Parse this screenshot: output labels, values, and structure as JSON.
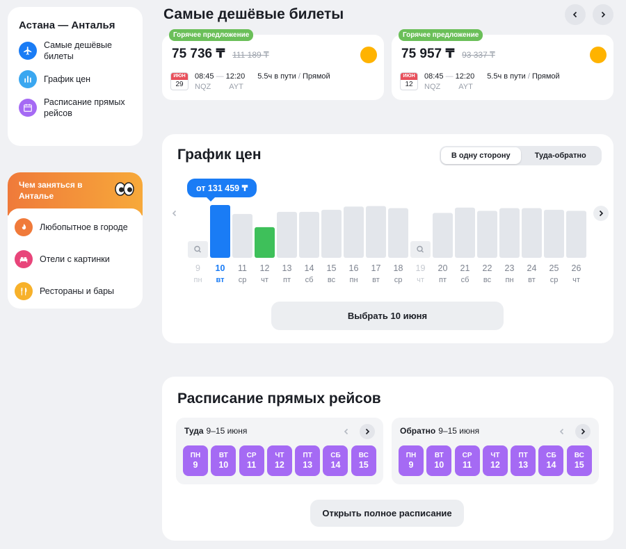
{
  "nav": {
    "route": "Астана — Анталья",
    "items": [
      {
        "label": "Самые дешёвые билеты",
        "icon": "plane-icon",
        "color": "#1a7cf5"
      },
      {
        "label": "График цен",
        "icon": "bar-chart-icon",
        "color": "#3aa7f0"
      },
      {
        "label": "Расписание прямых рейсов",
        "icon": "calendar-icon",
        "color": "#a56af4"
      }
    ]
  },
  "todo": {
    "title": "Чем заняться в Анталье",
    "items": [
      {
        "label": "Любопытное в городе",
        "icon": "flame-icon",
        "color": "#f07a3a"
      },
      {
        "label": "Отели с картинки",
        "icon": "bed-icon",
        "color": "#e8457a"
      },
      {
        "label": "Рестораны и бары",
        "icon": "fork-knife-icon",
        "color": "#f7b12a"
      }
    ]
  },
  "cheapest": {
    "title": "Самые дешёвые билеты",
    "tickets": [
      {
        "badge": "Горячее предложение",
        "price": "75 736 ₸",
        "old_price": "111 189 ₸",
        "month": "ИЮН",
        "day": "29",
        "dep_time": "08:45",
        "arr_time": "12:20",
        "dep_code": "NQZ",
        "arr_code": "AYT",
        "duration": "5.5ч в пути",
        "sep": "/",
        "type": "Прямой"
      },
      {
        "badge": "Горячее предложение",
        "price": "75 957 ₸",
        "old_price": "93 337 ₸",
        "month": "ИЮН",
        "day": "12",
        "dep_time": "08:45",
        "arr_time": "12:20",
        "dep_code": "NQZ",
        "arr_code": "AYT",
        "duration": "5.5ч в пути",
        "sep": "/",
        "type": "Прямой"
      }
    ]
  },
  "price_chart": {
    "title": "График цен",
    "toggle": [
      "В одну сторону",
      "Туда-обратно"
    ],
    "tooltip": "от 131 459 ₸",
    "choose_button": "Выбрать 10 июня",
    "colors": {
      "selected": "#1a7cf5",
      "cheapest": "#3ec05a",
      "default": "#e3e6eb",
      "muted": "#b5bac3",
      "accent": "#1a7cf5"
    }
  },
  "chart_data": {
    "type": "bar",
    "categories": [
      "9",
      "10",
      "11",
      "12",
      "13",
      "14",
      "15",
      "16",
      "17",
      "18",
      "19",
      "20",
      "21",
      "22",
      "23",
      "24",
      "25",
      "26"
    ],
    "weekdays": [
      "пн",
      "вт",
      "ср",
      "чт",
      "пт",
      "сб",
      "вс",
      "пн",
      "вт",
      "ср",
      "чт",
      "пт",
      "сб",
      "вс",
      "пн",
      "вт",
      "ср",
      "чт"
    ],
    "values": [
      null,
      1.0,
      0.83,
      0.58,
      0.87,
      0.87,
      0.91,
      0.97,
      0.98,
      0.94,
      null,
      0.85,
      0.95,
      0.89,
      0.94,
      0.94,
      0.91,
      0.89
    ],
    "selected": "10",
    "cheapest": "12",
    "no_data": [
      "9",
      "19"
    ]
  },
  "schedule": {
    "title": "Расписание прямых рейсов",
    "outbound": {
      "label": "Туда",
      "range": "9–15 июня"
    },
    "return": {
      "label": "Обратно",
      "range": "9–15 июня"
    },
    "days": [
      {
        "dn": "ПН",
        "dd": "9"
      },
      {
        "dn": "ВТ",
        "dd": "10"
      },
      {
        "dn": "СР",
        "dd": "11"
      },
      {
        "dn": "ЧТ",
        "dd": "12"
      },
      {
        "dn": "ПТ",
        "dd": "13"
      },
      {
        "dn": "СБ",
        "dd": "14"
      },
      {
        "dn": "ВС",
        "dd": "15"
      }
    ],
    "open_button": "Открыть полное расписание"
  }
}
